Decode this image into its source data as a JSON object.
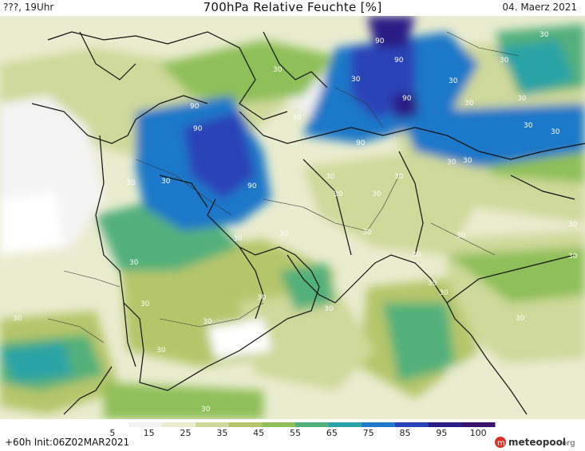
{
  "header": {
    "left_text": "???, 19Uhr",
    "title": "700hPa Relative Feuchte [%]",
    "date": "04. Maerz 2021"
  },
  "footer": {
    "run_info": "+60h  Init:06Z02MAR2021",
    "logo_text": "meteopool",
    "logo_suffix": ".org"
  },
  "colorbar": {
    "ticks": [
      "5",
      "15",
      "25",
      "35",
      "45",
      "55",
      "65",
      "75",
      "85",
      "95",
      "100"
    ],
    "colors": [
      "#ffffff",
      "#f2f2f2",
      "#e9eccf",
      "#cfd99a",
      "#b5c66a",
      "#8fbf58",
      "#52b07a",
      "#2aa3a6",
      "#1f78c8",
      "#2a43b8",
      "#2b1f86",
      "#3a136e"
    ]
  },
  "map": {
    "contour_labels": [
      "90",
      "90",
      "90",
      "90",
      "90",
      "90",
      "90",
      "30",
      "30",
      "30",
      "30",
      "30",
      "30",
      "30",
      "30",
      "30",
      "30",
      "30",
      "30",
      "30",
      "30",
      "30",
      "30",
      "30",
      "30",
      "30",
      "30",
      "30",
      "30",
      "30",
      "30",
      "30",
      "30",
      "30",
      "30",
      "30",
      "30",
      "30",
      "30",
      "30",
      "30",
      "30",
      "30"
    ],
    "accent_colors": {
      "very_dry": "#ffffff",
      "dry": "#e9eccf",
      "moderate": "#b5c66a",
      "moist": "#52b07a",
      "wet": "#1f78c8",
      "saturated": "#2b1f86"
    }
  }
}
